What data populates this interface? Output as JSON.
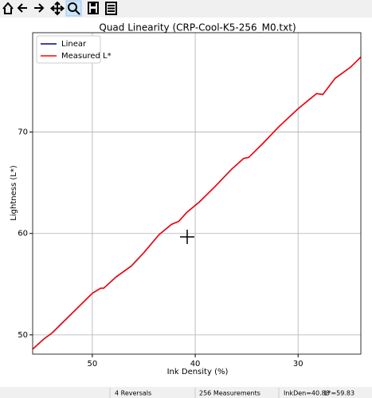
{
  "chart_data": {
    "type": "line",
    "title": "Quad Linearity  (CRP-Cool-K5-256_M0.txt)",
    "xlabel": "Ink Density (%)",
    "ylabel": "Lightness (L*)",
    "x": [
      55.8,
      54.7,
      53.9,
      52.8,
      51.6,
      50.0,
      49.2,
      48.9,
      47.7,
      46.2,
      45.0,
      43.5,
      42.3,
      41.6,
      40.8,
      39.6,
      38.1,
      36.5,
      35.3,
      34.8,
      33.4,
      31.9,
      30.0,
      28.8,
      28.2,
      27.6,
      26.4,
      24.9,
      23.9
    ],
    "series": [
      {
        "name": "Linear",
        "color": "#00008b",
        "values": [
          48.6,
          49.6,
          50.2,
          51.3,
          52.5,
          54.1,
          54.6,
          54.6,
          55.7,
          56.8,
          58.1,
          59.9,
          60.9,
          61.2,
          62.1,
          63.1,
          64.6,
          66.3,
          67.4,
          67.5,
          68.9,
          70.5,
          72.3,
          73.3,
          73.8,
          73.7,
          75.3,
          76.4,
          77.4
        ]
      },
      {
        "name": "Measured L*",
        "color": "#ff0000",
        "values": [
          48.6,
          49.6,
          50.2,
          51.3,
          52.5,
          54.1,
          54.6,
          54.6,
          55.7,
          56.8,
          58.1,
          59.9,
          60.9,
          61.2,
          62.1,
          63.1,
          64.6,
          66.3,
          67.4,
          67.5,
          68.9,
          70.5,
          72.3,
          73.3,
          73.8,
          73.7,
          75.3,
          76.4,
          77.4
        ]
      }
    ],
    "xlim": [
      55.8,
      23.9
    ],
    "ylim": [
      48.1,
      79.8
    ],
    "xticks": [
      50,
      40,
      30
    ],
    "yticks": [
      50,
      60,
      70
    ],
    "grid": true,
    "legend": "upper left"
  },
  "status_bar": {
    "items": [
      "4 Reversals",
      "256 Measurements",
      "InkDen=40.88",
      "L*=59.83"
    ]
  }
}
